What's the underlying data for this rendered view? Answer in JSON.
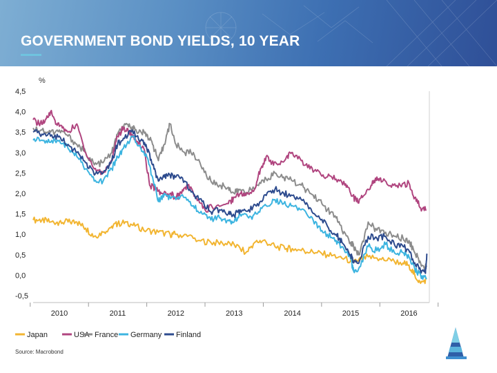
{
  "slide": {
    "title": "GOVERNMENT BOND YIELDS, 10 YEAR",
    "source": "Source: Macrobond"
  },
  "chart_data": {
    "type": "line",
    "title": "GOVERNMENT BOND YIELDS, 10 YEAR",
    "ylabel": "%",
    "xlabel": "",
    "ylim": [
      -0.5,
      4.5
    ],
    "xlim": [
      2009.55,
      2016.35
    ],
    "y_ticks": [
      "4,5",
      "4,0",
      "3,5",
      "3,0",
      "2,5",
      "2,0",
      "1,5",
      "1,0",
      "0,5",
      "0,0",
      "-0,5"
    ],
    "x_ticks": [
      "2010",
      "2011",
      "2012",
      "2013",
      "2014",
      "2015",
      "2016"
    ],
    "grid": false,
    "legend_position": "bottom-left",
    "series": [
      {
        "name": "Japan",
        "color": "#f2b531",
        "x": [
          2009.55,
          2009.7,
          2009.85,
          2010.0,
          2010.15,
          2010.3,
          2010.45,
          2010.6,
          2010.75,
          2010.9,
          2011.0,
          2011.15,
          2011.3,
          2011.5,
          2011.7,
          2011.9,
          2012.0,
          2012.2,
          2012.4,
          2012.6,
          2012.8,
          2013.0,
          2013.2,
          2013.35,
          2013.5,
          2013.7,
          2013.9,
          2014.0,
          2014.2,
          2014.4,
          2014.6,
          2014.8,
          2015.0,
          2015.1,
          2015.3,
          2015.5,
          2015.7,
          2015.9,
          2016.0,
          2016.1,
          2016.2,
          2016.3
        ],
        "values": [
          1.35,
          1.35,
          1.3,
          1.3,
          1.3,
          1.3,
          1.15,
          0.95,
          1.05,
          1.2,
          1.25,
          1.3,
          1.2,
          1.1,
          1.05,
          1.0,
          1.0,
          0.95,
          0.85,
          0.8,
          0.78,
          0.75,
          0.55,
          0.8,
          0.85,
          0.7,
          0.65,
          0.65,
          0.6,
          0.55,
          0.5,
          0.45,
          0.35,
          0.35,
          0.45,
          0.4,
          0.35,
          0.3,
          0.25,
          0.0,
          -0.2,
          -0.1
        ]
      },
      {
        "name": "USA",
        "color": "#b0457f",
        "x": [
          2009.55,
          2009.65,
          2009.75,
          2009.85,
          2009.95,
          2010.05,
          2010.15,
          2010.3,
          2010.45,
          2010.6,
          2010.75,
          2010.9,
          2011.0,
          2011.1,
          2011.2,
          2011.3,
          2011.45,
          2011.55,
          2011.65,
          2011.75,
          2011.9,
          2012.0,
          2012.1,
          2012.2,
          2012.35,
          2012.5,
          2012.7,
          2012.9,
          2013.0,
          2013.1,
          2013.2,
          2013.35,
          2013.45,
          2013.55,
          2013.65,
          2013.75,
          2013.9,
          2014.0,
          2014.15,
          2014.3,
          2014.45,
          2014.6,
          2014.75,
          2014.9,
          2015.0,
          2015.1,
          2015.2,
          2015.35,
          2015.45,
          2015.55,
          2015.7,
          2015.85,
          2016.0,
          2016.1,
          2016.2,
          2016.3
        ],
        "values": [
          3.8,
          3.7,
          3.75,
          4.0,
          3.7,
          3.6,
          3.5,
          3.7,
          3.0,
          2.6,
          2.5,
          2.8,
          3.4,
          3.6,
          3.5,
          3.35,
          3.1,
          2.2,
          2.1,
          2.0,
          2.0,
          1.9,
          2.0,
          2.2,
          1.9,
          1.6,
          1.7,
          1.75,
          1.9,
          2.0,
          1.95,
          2.1,
          2.6,
          2.9,
          2.75,
          2.7,
          2.9,
          3.0,
          2.8,
          2.6,
          2.55,
          2.4,
          2.35,
          2.2,
          2.0,
          1.8,
          1.9,
          2.2,
          2.4,
          2.3,
          2.15,
          2.2,
          2.25,
          1.9,
          1.65,
          1.6
        ]
      },
      {
        "name": "France",
        "color": "#8c8c8c",
        "x": [
          2009.55,
          2009.7,
          2009.85,
          2010.0,
          2010.15,
          2010.3,
          2010.45,
          2010.6,
          2010.75,
          2010.9,
          2011.0,
          2011.1,
          2011.2,
          2011.3,
          2011.4,
          2011.5,
          2011.6,
          2011.7,
          2011.8,
          2011.9,
          2012.0,
          2012.15,
          2012.3,
          2012.45,
          2012.6,
          2012.75,
          2012.9,
          2013.0,
          2013.1,
          2013.25,
          2013.4,
          2013.55,
          2013.7,
          2013.85,
          2014.0,
          2014.15,
          2014.3,
          2014.45,
          2014.6,
          2014.75,
          2014.85,
          2015.0,
          2015.05,
          2015.15,
          2015.3,
          2015.45,
          2015.6,
          2015.75,
          2015.9,
          2016.0,
          2016.1,
          2016.2,
          2016.3
        ],
        "values": [
          3.6,
          3.55,
          3.5,
          3.55,
          3.4,
          3.2,
          3.0,
          2.7,
          2.75,
          3.0,
          3.45,
          3.6,
          3.7,
          3.55,
          3.5,
          3.45,
          3.2,
          2.8,
          3.2,
          3.7,
          3.2,
          3.0,
          3.0,
          2.6,
          2.3,
          2.2,
          2.15,
          2.0,
          2.1,
          2.05,
          2.2,
          2.35,
          2.5,
          2.4,
          2.3,
          2.2,
          2.0,
          1.85,
          1.6,
          1.4,
          1.1,
          0.8,
          0.7,
          0.5,
          1.3,
          1.1,
          1.05,
          0.95,
          0.9,
          0.85,
          0.55,
          0.3,
          0.2
        ]
      },
      {
        "name": "Germany",
        "color": "#3cb4e0",
        "x": [
          2009.55,
          2009.7,
          2009.85,
          2010.0,
          2010.15,
          2010.3,
          2010.45,
          2010.6,
          2010.75,
          2010.9,
          2011.0,
          2011.1,
          2011.25,
          2011.4,
          2011.5,
          2011.6,
          2011.7,
          2011.8,
          2011.9,
          2012.0,
          2012.15,
          2012.3,
          2012.45,
          2012.6,
          2012.75,
          2012.9,
          2013.0,
          2013.1,
          2013.25,
          2013.4,
          2013.55,
          2013.7,
          2013.85,
          2014.0,
          2014.15,
          2014.3,
          2014.45,
          2014.6,
          2014.75,
          2014.85,
          2015.0,
          2015.05,
          2015.15,
          2015.3,
          2015.45,
          2015.6,
          2015.75,
          2015.9,
          2016.0,
          2016.1,
          2016.2,
          2016.3
        ],
        "values": [
          3.3,
          3.3,
          3.25,
          3.3,
          3.1,
          2.9,
          2.6,
          2.3,
          2.3,
          2.6,
          2.9,
          3.1,
          3.4,
          3.1,
          2.9,
          2.4,
          1.8,
          2.0,
          1.9,
          1.85,
          1.9,
          1.7,
          1.5,
          1.35,
          1.4,
          1.35,
          1.3,
          1.5,
          1.4,
          1.5,
          1.7,
          1.85,
          1.75,
          1.7,
          1.6,
          1.4,
          1.2,
          1.0,
          0.85,
          0.7,
          0.4,
          0.1,
          0.2,
          0.7,
          0.6,
          0.75,
          0.55,
          0.55,
          0.45,
          0.15,
          0.0,
          -0.1
        ]
      },
      {
        "name": "Finland",
        "color": "#2d4b8e",
        "x": [
          2009.55,
          2009.7,
          2009.85,
          2010.0,
          2010.15,
          2010.3,
          2010.45,
          2010.6,
          2010.75,
          2010.9,
          2011.0,
          2011.1,
          2011.25,
          2011.4,
          2011.5,
          2011.6,
          2011.7,
          2011.8,
          2011.9,
          2012.0,
          2012.15,
          2012.3,
          2012.45,
          2012.6,
          2012.75,
          2012.9,
          2013.0,
          2013.1,
          2013.25,
          2013.4,
          2013.55,
          2013.7,
          2013.85,
          2014.0,
          2014.15,
          2014.3,
          2014.45,
          2014.6,
          2014.75,
          2014.85,
          2015.0,
          2015.05,
          2015.15,
          2015.3,
          2015.45,
          2015.6,
          2015.75,
          2015.9,
          2016.0,
          2016.1,
          2016.2,
          2016.28,
          2016.31
        ],
        "values": [
          3.5,
          3.45,
          3.4,
          3.4,
          3.2,
          3.0,
          2.75,
          2.45,
          2.5,
          2.8,
          3.2,
          3.35,
          3.55,
          3.3,
          3.1,
          2.7,
          2.3,
          2.4,
          2.45,
          2.4,
          2.3,
          2.0,
          1.8,
          1.55,
          1.6,
          1.5,
          1.45,
          1.6,
          1.6,
          1.75,
          1.95,
          2.1,
          2.0,
          1.95,
          1.85,
          1.65,
          1.45,
          1.2,
          1.0,
          0.8,
          0.5,
          0.3,
          0.35,
          0.95,
          0.9,
          0.95,
          0.75,
          0.7,
          0.6,
          0.3,
          0.1,
          0.05,
          0.5
        ]
      }
    ]
  }
}
